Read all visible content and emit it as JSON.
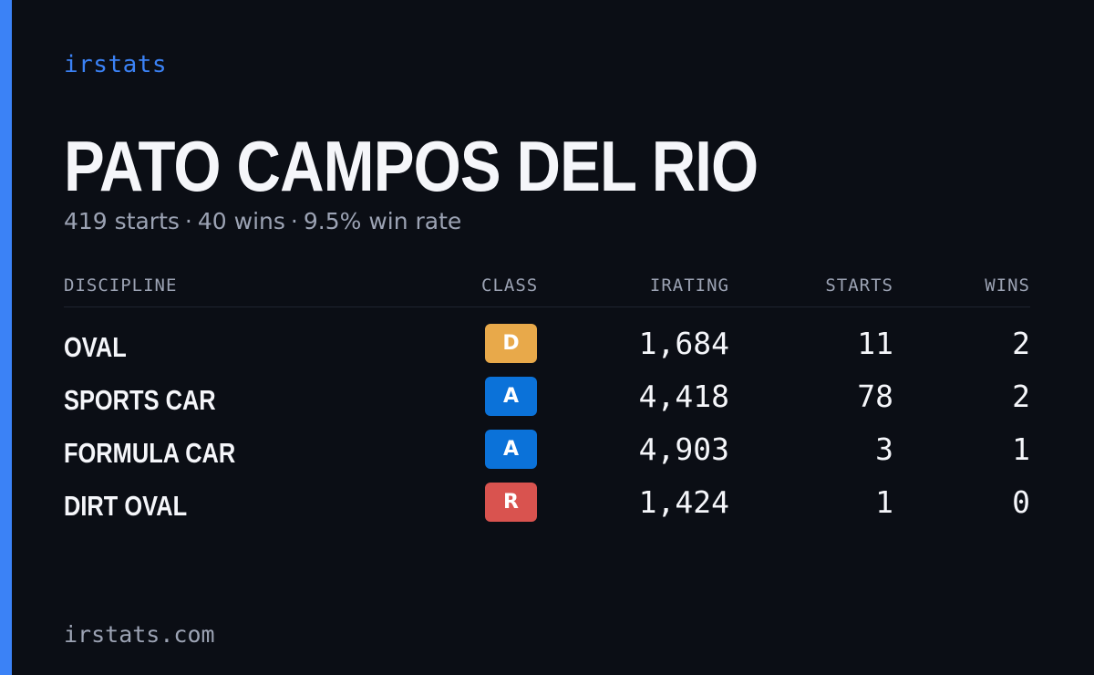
{
  "brand": "irstats",
  "driver": {
    "name": "PATO CAMPOS DEL RIO",
    "starts_text": "419 starts",
    "wins_text": "40 wins",
    "win_rate_text": "9.5% win rate",
    "separator": "·"
  },
  "table": {
    "headers": {
      "discipline": "DISCIPLINE",
      "class": "CLASS",
      "irating": "IRATING",
      "starts": "STARTS",
      "wins": "WINS"
    },
    "rows": [
      {
        "discipline": "OVAL",
        "class": "D",
        "class_color": "#e8a94a",
        "irating": "1,684",
        "starts": "11",
        "wins": "2"
      },
      {
        "discipline": "SPORTS CAR",
        "class": "A",
        "class_color": "#0b72d9",
        "irating": "4,418",
        "starts": "78",
        "wins": "2"
      },
      {
        "discipline": "FORMULA CAR",
        "class": "A",
        "class_color": "#0b72d9",
        "irating": "4,903",
        "starts": "3",
        "wins": "1"
      },
      {
        "discipline": "DIRT OVAL",
        "class": "R",
        "class_color": "#d9534f",
        "irating": "1,424",
        "starts": "1",
        "wins": "0"
      }
    ]
  },
  "footer": "irstats.com",
  "colors": {
    "accent": "#3b82f6",
    "background": "#0b0e15",
    "muted_text": "#9ca3b4"
  }
}
